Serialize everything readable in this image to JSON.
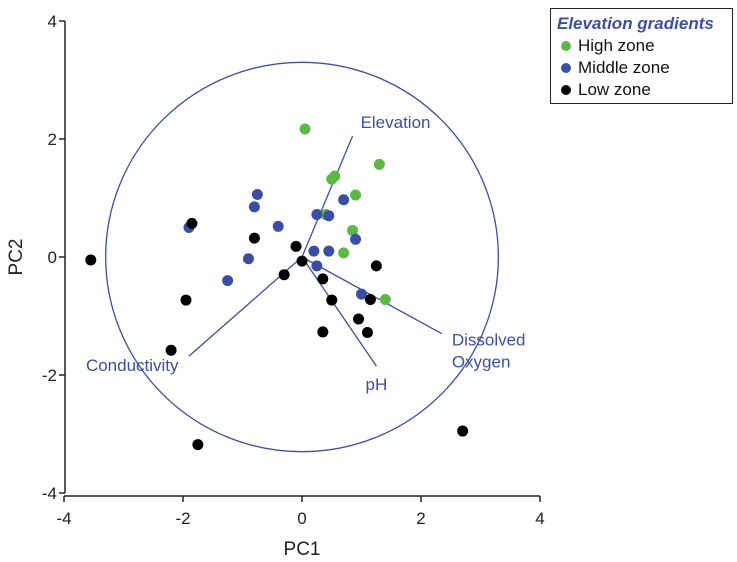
{
  "chart_data": {
    "type": "scatter",
    "title": "",
    "xlabel": "PC1",
    "ylabel": "PC2",
    "xlim": [
      -4,
      4
    ],
    "ylim": [
      -4,
      4
    ],
    "xticks": [
      "-4",
      "-2",
      "0",
      "2",
      "4"
    ],
    "yticks": [
      "-4",
      "-2",
      "0",
      "2",
      "4"
    ],
    "grid": false,
    "circle_radius": 3.3,
    "legend": {
      "title": "Elevation gradients",
      "placement": "top-right"
    },
    "series": [
      {
        "name": "High zone",
        "color": "#5cb946",
        "points": [
          [
            0.05,
            2.17
          ],
          [
            0.5,
            1.32
          ],
          [
            0.55,
            1.37
          ],
          [
            1.3,
            1.57
          ],
          [
            0.9,
            1.05
          ],
          [
            0.4,
            0.72
          ],
          [
            0.85,
            0.45
          ],
          [
            0.7,
            0.07
          ],
          [
            1.4,
            -0.72
          ]
        ]
      },
      {
        "name": "Middle zone",
        "color": "#3b4fa2",
        "points": [
          [
            -1.9,
            0.5
          ],
          [
            -0.75,
            1.06
          ],
          [
            -0.8,
            0.85
          ],
          [
            -0.4,
            0.52
          ],
          [
            0.25,
            0.72
          ],
          [
            0.45,
            0.7
          ],
          [
            0.7,
            0.97
          ],
          [
            0.9,
            0.3
          ],
          [
            0.2,
            0.1
          ],
          [
            0.45,
            0.1
          ],
          [
            -0.9,
            -0.03
          ],
          [
            -1.25,
            -0.4
          ],
          [
            0.25,
            -0.15
          ],
          [
            1.0,
            -0.63
          ]
        ]
      },
      {
        "name": "Low zone",
        "color": "#000000",
        "points": [
          [
            -3.55,
            -0.05
          ],
          [
            -1.85,
            0.57
          ],
          [
            -0.8,
            0.32
          ],
          [
            -0.1,
            0.18
          ],
          [
            0.0,
            -0.07
          ],
          [
            -0.3,
            -0.3
          ],
          [
            0.35,
            -0.37
          ],
          [
            1.25,
            -0.15
          ],
          [
            -1.95,
            -0.73
          ],
          [
            0.5,
            -0.73
          ],
          [
            1.15,
            -0.72
          ],
          [
            0.95,
            -1.05
          ],
          [
            0.35,
            -1.27
          ],
          [
            1.1,
            -1.28
          ],
          [
            -2.2,
            -1.58
          ],
          [
            -1.75,
            -3.18
          ],
          [
            2.7,
            -2.95
          ]
        ]
      }
    ],
    "vectors": [
      {
        "label": "Elevation",
        "x": 0.85,
        "y": 2.05
      },
      {
        "label": "Conductivity",
        "x": -1.9,
        "y": -1.68
      },
      {
        "label": "pH",
        "x": 1.25,
        "y": -1.85
      },
      {
        "label": "Dissolved Oxygen",
        "x": 2.35,
        "y": -1.3
      }
    ]
  }
}
